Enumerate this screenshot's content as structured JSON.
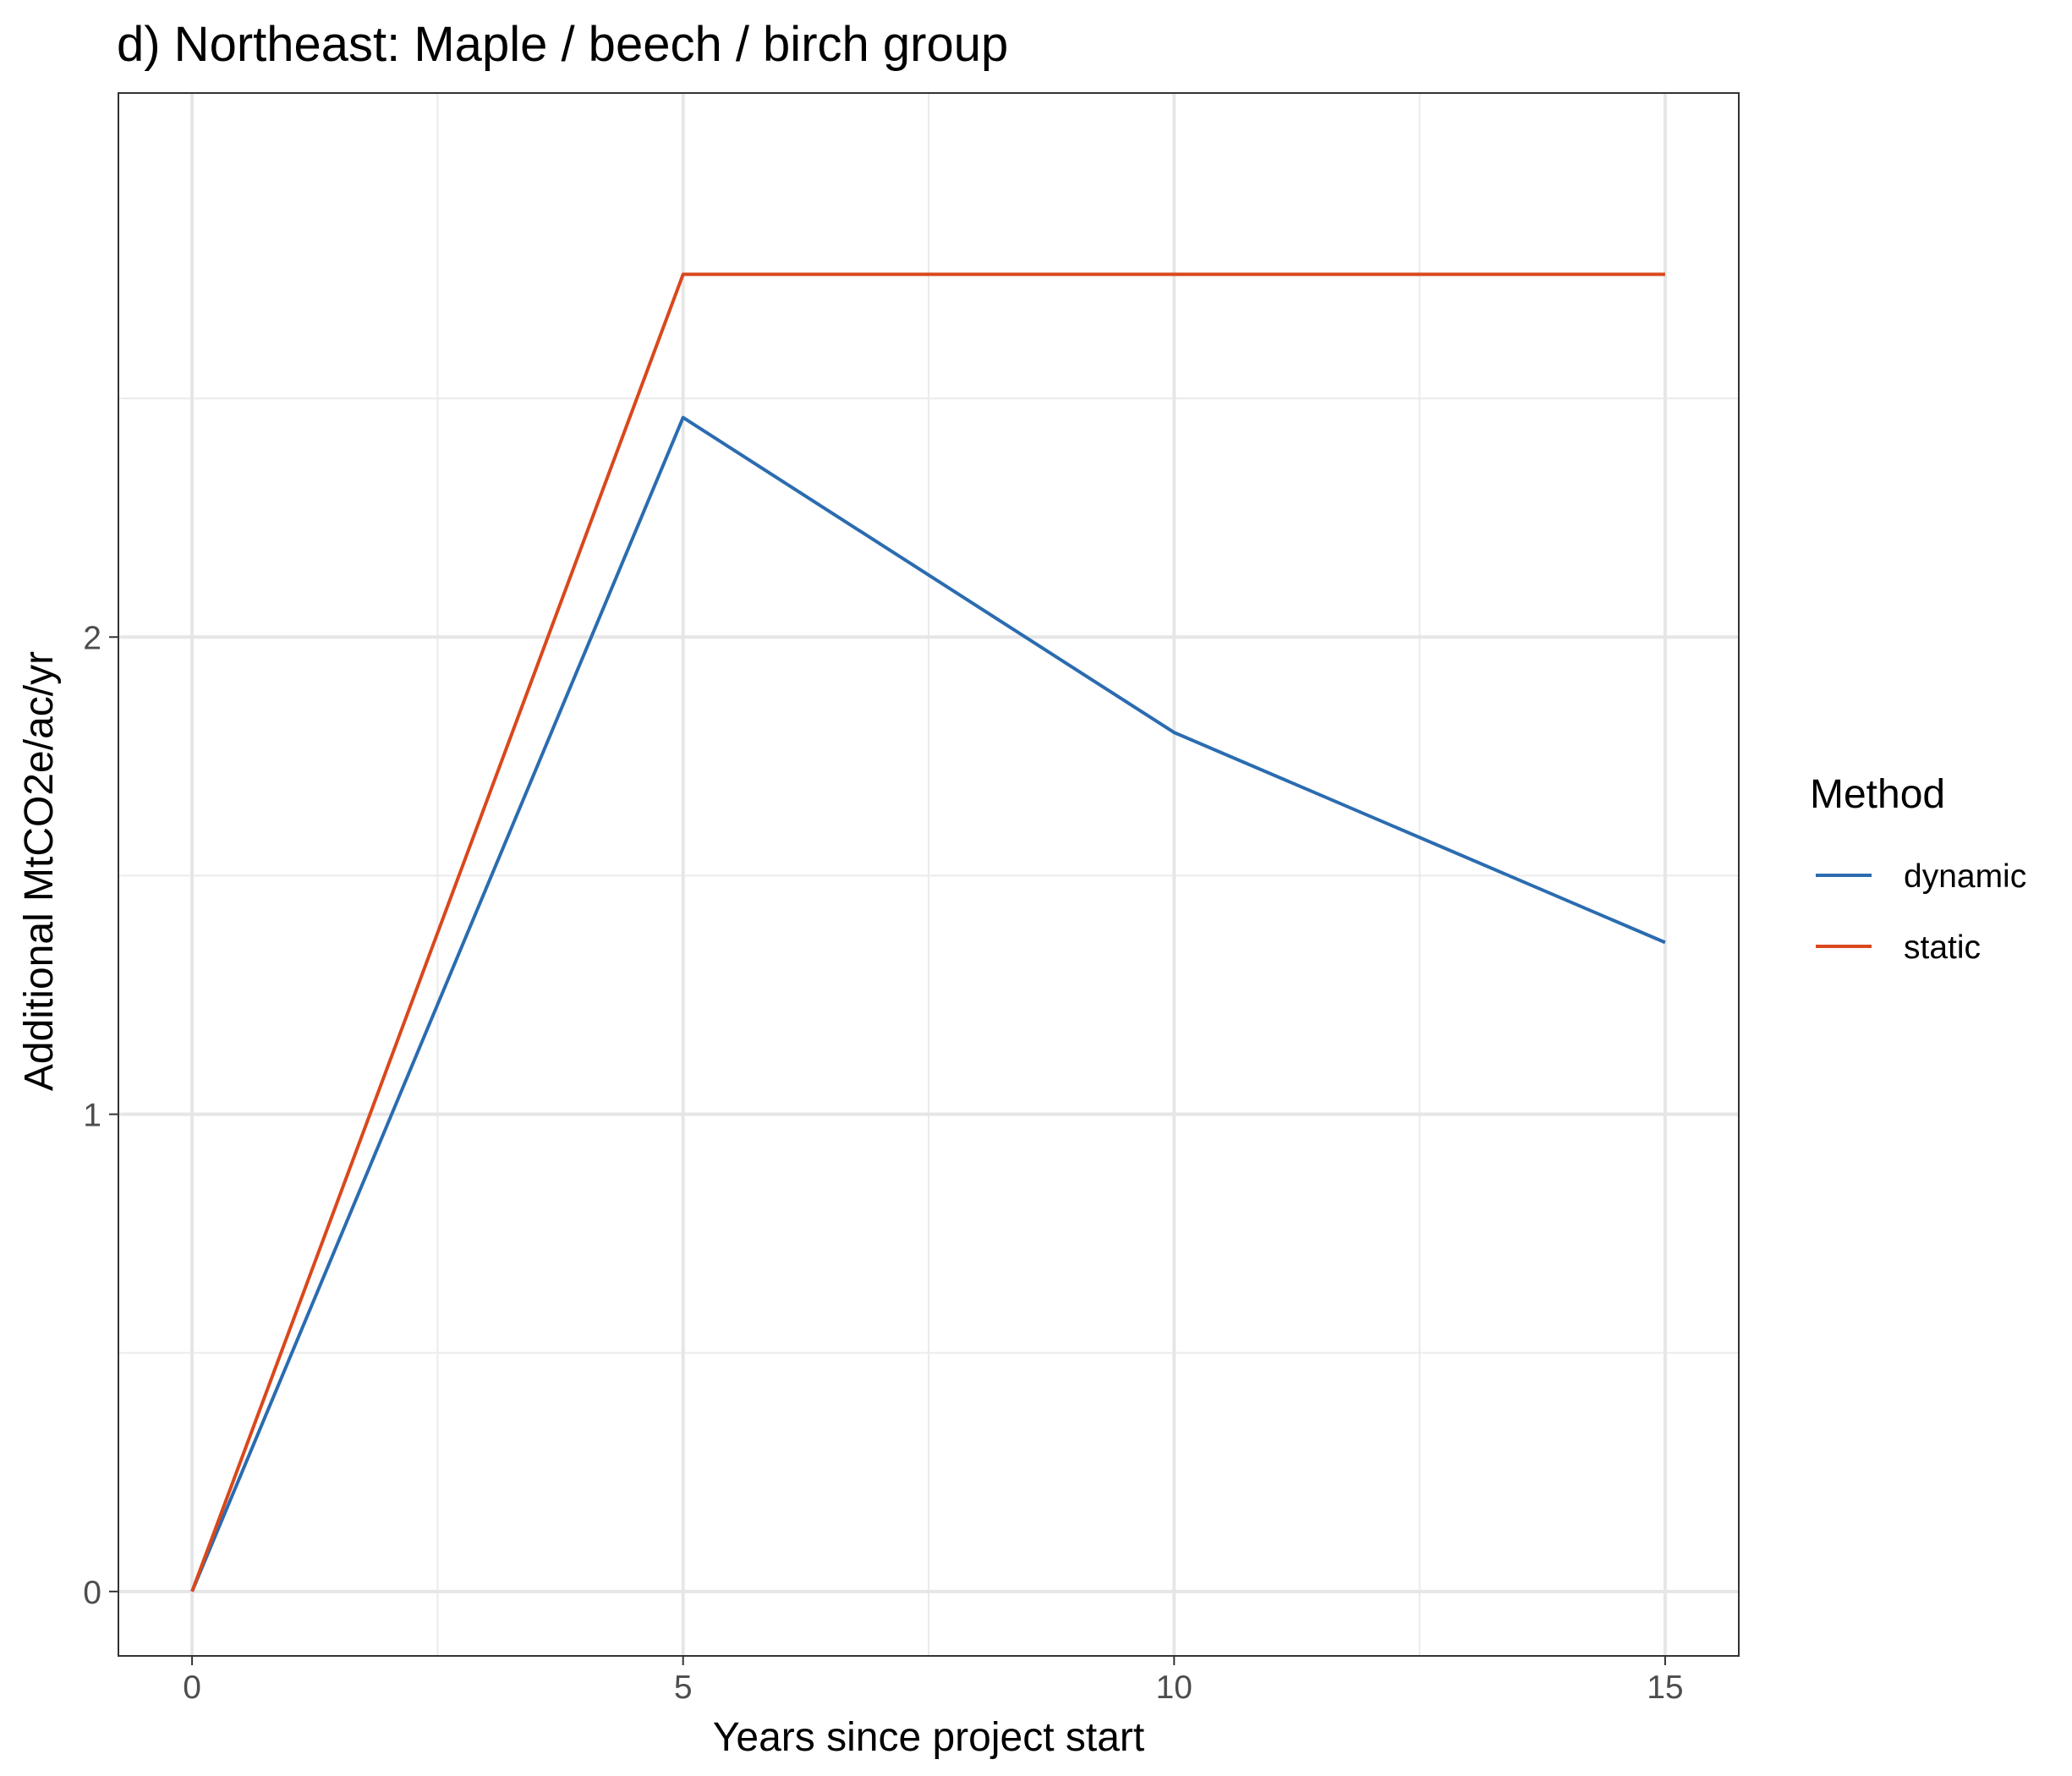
{
  "chart_data": {
    "type": "line",
    "title": "d) Northeast: Maple / beech / birch group",
    "xlabel": "Years since project start",
    "ylabel": "Additional MtCO2e/ac/yr",
    "x": [
      0,
      5,
      10,
      15
    ],
    "xlim": [
      -0.75,
      15.75
    ],
    "ylim": [
      -0.135,
      3.14
    ],
    "x_ticks": [
      0,
      5,
      10,
      15
    ],
    "y_ticks": [
      0,
      1,
      2
    ],
    "x_tick_labels": [
      "0",
      "5",
      "10",
      "15"
    ],
    "y_tick_labels": [
      "0",
      "1",
      "2"
    ],
    "x_minor_ticks": [
      2.5,
      7.5,
      12.5
    ],
    "y_minor_ticks": [
      0.5,
      1.5,
      2.5
    ],
    "grid": true,
    "legend": {
      "title": "Method",
      "position": "right"
    },
    "series": [
      {
        "name": "dynamic",
        "color": "#2b6cb0",
        "values": [
          0,
          2.46,
          1.8,
          1.36
        ]
      },
      {
        "name": "static",
        "color": "#d9481c",
        "values": [
          0,
          2.76,
          2.76,
          2.76
        ]
      }
    ]
  }
}
